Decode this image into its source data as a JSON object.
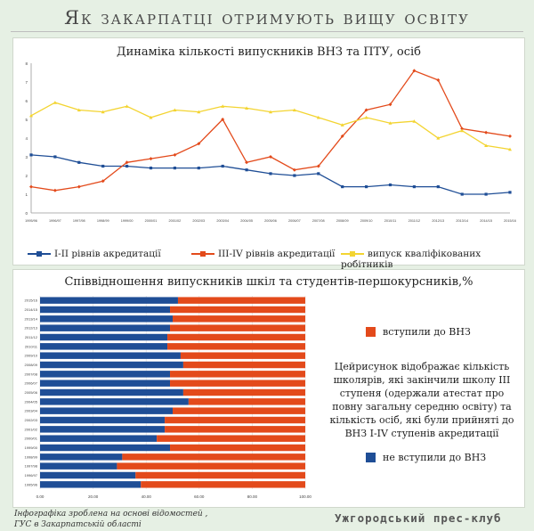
{
  "page_title": "Як закарпатці отримують вищу освіту",
  "colors": {
    "blue": "#1f4e96",
    "red": "#e34a1b",
    "yellow": "#f3d431"
  },
  "chart_data": [
    {
      "type": "line",
      "title": "Динаміка кількості випускників ВНЗ та ПТУ, осіб",
      "categories": [
        "1995/96",
        "1996/97",
        "1997/98",
        "1998/99",
        "1999/00",
        "2000/01",
        "2001/02",
        "2002/03",
        "2003/04",
        "2004/05",
        "2005/06",
        "2006/07",
        "2007/08",
        "2008/09",
        "2009/10",
        "2010/11",
        "2011/12",
        "2012/13",
        "2013/14",
        "2014/15",
        "2015/16"
      ],
      "yticks": [
        "0",
        "1",
        "2",
        "3",
        "4",
        "5",
        "6",
        "7",
        "8"
      ],
      "ylim": [
        0,
        8
      ],
      "grid": false,
      "legend_position": "bottom",
      "series": [
        {
          "name": "І-ІІ рівнів акредитації",
          "color": "#1f4e96",
          "marker": "square",
          "values": [
            3.1,
            3.0,
            2.7,
            2.5,
            2.5,
            2.4,
            2.4,
            2.4,
            2.5,
            2.3,
            2.1,
            2.0,
            2.1,
            1.4,
            1.4,
            1.5,
            1.4,
            1.4,
            1.0,
            1.0,
            1.1
          ]
        },
        {
          "name": "ІІІ-ІV рівнів акредитації",
          "color": "#e34a1b",
          "marker": "diamond",
          "values": [
            1.4,
            1.2,
            1.4,
            1.7,
            2.7,
            2.9,
            3.1,
            3.7,
            5.0,
            2.7,
            3.0,
            2.3,
            2.5,
            4.1,
            5.5,
            5.8,
            7.6,
            7.1,
            4.5,
            4.3,
            4.1
          ]
        },
        {
          "name": "випуск кваліфікованих робітників",
          "color": "#f3d431",
          "marker": "triangle",
          "values": [
            5.2,
            5.9,
            5.5,
            5.4,
            5.7,
            5.1,
            5.5,
            5.4,
            5.7,
            5.6,
            5.4,
            5.5,
            5.1,
            4.7,
            5.1,
            4.8,
            4.9,
            4.0,
            4.4,
            3.6,
            3.4
          ]
        }
      ]
    },
    {
      "type": "bar",
      "orientation": "horizontal",
      "stacked": true,
      "title": "Співвідношення випускників шкіл та студентів-першокурсників,%",
      "categories": [
        "2015/16",
        "2014/15",
        "2013/14",
        "2012/13",
        "2011/12",
        "2010/11",
        "2009/10",
        "2008/09",
        "2007/08",
        "2006/07",
        "2005/06",
        "2004/05",
        "2003/04",
        "2002/03",
        "2001/02",
        "2000/01",
        "1999/00",
        "1998/99",
        "1997/98",
        "1996/97",
        "1995/96"
      ],
      "xticks": [
        "0.00",
        "20.00",
        "40.00",
        "60.00",
        "80.00",
        "100.00"
      ],
      "xlim": [
        0,
        100
      ],
      "series": [
        {
          "name": "не вступили до ВНЗ",
          "color": "#1f4e96",
          "values": [
            52,
            49,
            50,
            49,
            48,
            48,
            53,
            54,
            49,
            49,
            54,
            56,
            50,
            47,
            47,
            44,
            49,
            31,
            29,
            36,
            38
          ]
        },
        {
          "name": "вступили до ВНЗ",
          "color": "#e34a1b",
          "values": [
            48,
            51,
            50,
            51,
            52,
            52,
            47,
            46,
            51,
            51,
            46,
            44,
            50,
            53,
            53,
            56,
            51,
            69,
            71,
            64,
            62
          ]
        }
      ]
    }
  ],
  "bar_legend": {
    "entered": "вступили до ВНЗ",
    "not_entered": "не вступили до ВНЗ"
  },
  "description": "Цейрисунок відображає кількість школярів, які закінчили школу ІІІ ступеня (одержали атестат про повну загальну середню освіту) та кількість осіб, які були прийняті до ВНЗ І-ІV ступенів акредитації",
  "footer": {
    "source_line1": "Інфографіка зроблена на основі відомостей ,",
    "source_line2": "ГУС в Закарпатській області",
    "brand": "Ужгородський прес-клуб"
  }
}
